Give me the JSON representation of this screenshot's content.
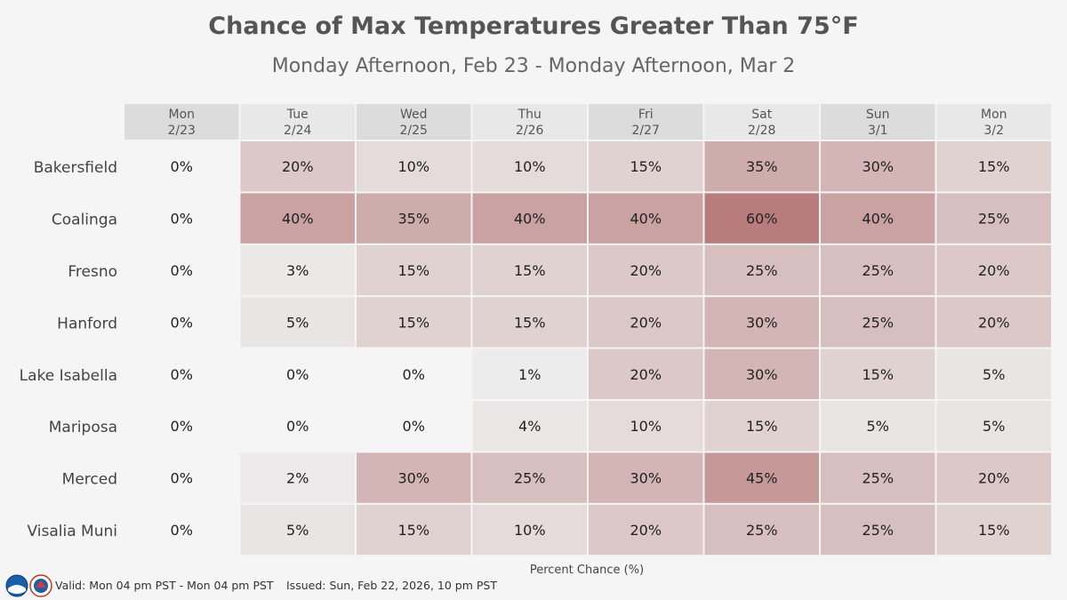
{
  "title": "Chance of Max Temperatures Greater Than 75°F",
  "subtitle": "Monday Afternoon, Feb 23 - Monday Afternoon, Mar 2",
  "legend_label": "Percent Chance (%)",
  "footer": {
    "valid": "Valid: Mon 04 pm PST - Mon 04 pm PST",
    "issued": "Issued: Sun, Feb 22, 2026, 10 pm PST"
  },
  "colors": {
    "background": "#f5f5f5",
    "header_dark": "#dcdcdc",
    "header_light": "#e8e8e8",
    "low": "#eeeeee",
    "high": "#b87c7c",
    "text": "#222222"
  },
  "chart_data": {
    "type": "heatmap",
    "title": "Chance of Max Temperatures Greater Than 75°F",
    "subtitle": "Monday Afternoon, Feb 23 - Monday Afternoon, Mar 2",
    "columns": [
      {
        "day": "Mon",
        "date": "2/23"
      },
      {
        "day": "Tue",
        "date": "2/24"
      },
      {
        "day": "Wed",
        "date": "2/25"
      },
      {
        "day": "Thu",
        "date": "2/26"
      },
      {
        "day": "Fri",
        "date": "2/27"
      },
      {
        "day": "Sat",
        "date": "2/28"
      },
      {
        "day": "Sun",
        "date": "3/1"
      },
      {
        "day": "Mon",
        "date": "3/2"
      }
    ],
    "rows": [
      "Bakersfield",
      "Coalinga",
      "Fresno",
      "Hanford",
      "Lake Isabella",
      "Mariposa",
      "Merced",
      "Visalia Muni"
    ],
    "values": [
      [
        0,
        20,
        10,
        10,
        15,
        35,
        30,
        15
      ],
      [
        0,
        40,
        35,
        40,
        40,
        60,
        40,
        25
      ],
      [
        0,
        3,
        15,
        15,
        20,
        25,
        25,
        20
      ],
      [
        0,
        5,
        15,
        15,
        20,
        30,
        25,
        20
      ],
      [
        0,
        0,
        0,
        1,
        20,
        30,
        15,
        5
      ],
      [
        0,
        0,
        0,
        4,
        10,
        15,
        5,
        5
      ],
      [
        0,
        2,
        30,
        25,
        30,
        45,
        25,
        20
      ],
      [
        0,
        5,
        15,
        10,
        20,
        25,
        25,
        15
      ]
    ],
    "unit": "%",
    "xlabel": "Percent Chance (%)"
  }
}
